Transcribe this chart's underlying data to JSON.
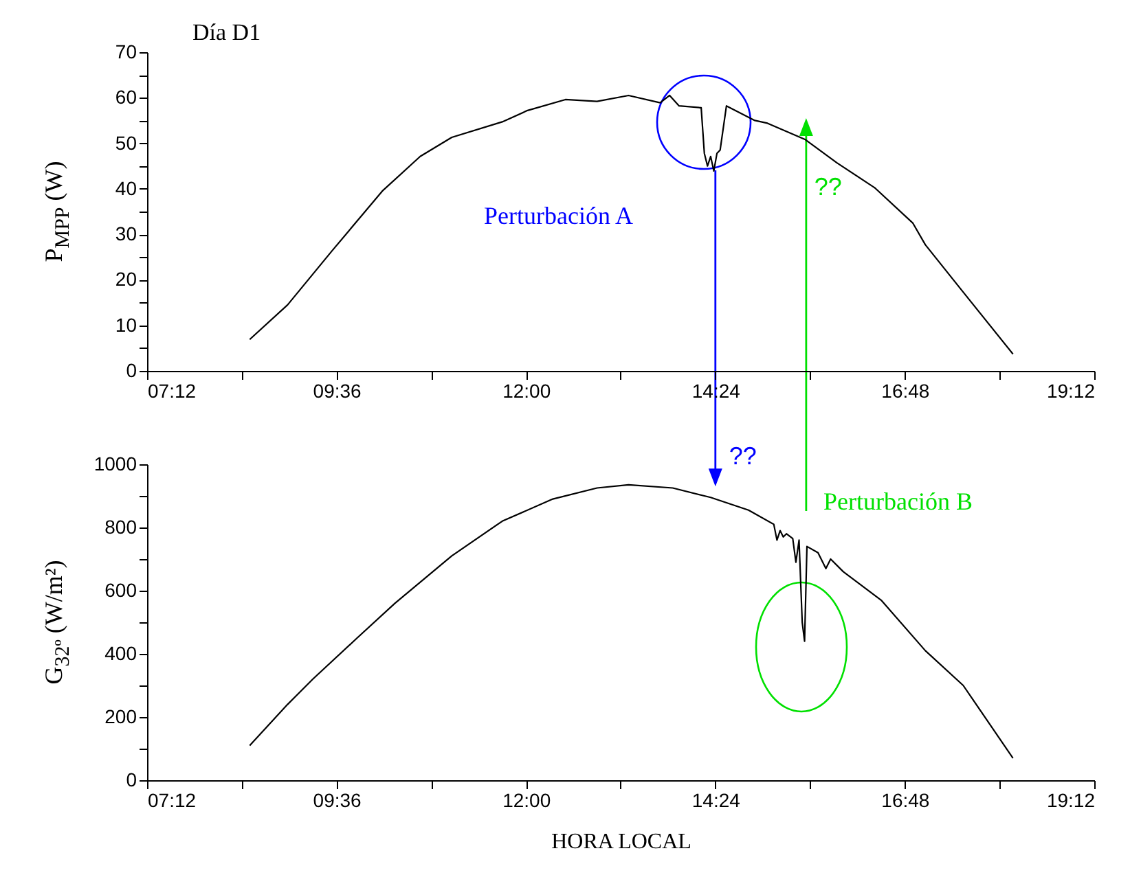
{
  "chart_data": [
    {
      "type": "line",
      "title": "Día D1",
      "ylabel": "P$_{MPP}$ (W)",
      "x": [
        8.5,
        8.98,
        9.54,
        10.18,
        10.66,
        11.06,
        11.7,
        12.02,
        12.5,
        12.9,
        13.3,
        13.7,
        13.82,
        13.94,
        14.22,
        14.26,
        14.3,
        14.34,
        14.38,
        14.42,
        14.46,
        14.54,
        14.9,
        15.06,
        15.54,
        15.94,
        16.42,
        16.9,
        17.06,
        17.54,
        18.17
      ],
      "series": [
        {
          "color": "#000000",
          "values": [
            6.9,
            14.5,
            26.3,
            39.5,
            47.1,
            51.3,
            54.7,
            57.2,
            59.6,
            59.2,
            60.5,
            58.9,
            60.5,
            58.2,
            57.8,
            47.8,
            45.0,
            47.1,
            43.9,
            47.8,
            48.5,
            58.2,
            55.0,
            54.4,
            50.8,
            45.7,
            40.2,
            32.5,
            27.7,
            17.3,
            3.7
          ]
        }
      ],
      "xlim": [
        7.2,
        19.2
      ],
      "xticks": [
        {
          "value": 7.2,
          "label": "07:12"
        },
        {
          "value": 8.4,
          "label": null
        },
        {
          "value": 9.6,
          "label": "09:36"
        },
        {
          "value": 10.8,
          "label": null
        },
        {
          "value": 12,
          "label": "12:00"
        },
        {
          "value": 13.2,
          "label": null
        },
        {
          "value": 14.4,
          "label": "14:24"
        },
        {
          "value": 15.6,
          "label": null
        },
        {
          "value": 16.8,
          "label": "16:48"
        },
        {
          "value": 18,
          "label": null
        },
        {
          "value": 19.2,
          "label": "19:12"
        }
      ],
      "ylim": [
        0,
        70
      ],
      "yticks": [
        0,
        {
          "value": 5,
          "label": null
        },
        10,
        {
          "value": 15,
          "label": null
        },
        20,
        {
          "value": 25,
          "label": null
        },
        30,
        {
          "value": 35,
          "label": null
        },
        40,
        {
          "value": 45,
          "label": null
        },
        50,
        {
          "value": 55,
          "label": null
        },
        60,
        {
          "value": 65,
          "label": null
        },
        70
      ],
      "grid": false,
      "annotations": [
        "Perturbación A",
        {
          "text": "??",
          "x": 15.55,
          "y": 51
        }
      ]
    },
    {
      "type": "line",
      "xlabel": "HORA LOCAL",
      "ylabel": "G$_{32º}$ (W/m²)",
      "x": [
        8.5,
        8.98,
        9.3,
        9.86,
        10.34,
        11.06,
        11.7,
        12.34,
        12.9,
        13.3,
        13.86,
        14.34,
        14.82,
        15.14,
        15.18,
        15.22,
        15.26,
        15.3,
        15.38,
        15.42,
        15.46,
        15.5,
        15.53,
        15.56,
        15.7,
        15.8,
        15.86,
        16.02,
        16.5,
        17.06,
        17.54,
        18.17
      ],
      "series": [
        {
          "color": "#000000",
          "values": [
            110,
            240,
            320,
            450,
            560,
            710,
            820,
            890,
            925,
            935,
            925,
            895,
            855,
            810,
            760,
            790,
            770,
            780,
            765,
            690,
            760,
            500,
            440,
            740,
            720,
            670,
            700,
            660,
            570,
            410,
            300,
            70
          ]
        }
      ],
      "xlim": [
        7.2,
        19.2
      ],
      "xticks": [
        {
          "value": 7.2,
          "label": "07:12"
        },
        {
          "value": 8.4,
          "label": null
        },
        {
          "value": 9.6,
          "label": "09:36"
        },
        {
          "value": 10.8,
          "label": null
        },
        {
          "value": 12,
          "label": "12:00"
        },
        {
          "value": 13.2,
          "label": null
        },
        {
          "value": 14.4,
          "label": "14:24"
        },
        {
          "value": 15.6,
          "label": null
        },
        {
          "value": 16.8,
          "label": "16:48"
        },
        {
          "value": 18,
          "label": null
        },
        {
          "value": 19.2,
          "label": "19:12"
        }
      ],
      "ylim": [
        0,
        1000
      ],
      "yticks": [
        0,
        {
          "value": 100,
          "label": null
        },
        200,
        {
          "value": 300,
          "label": null
        },
        400,
        {
          "value": 500,
          "label": null
        },
        600,
        {
          "value": 700,
          "label": null
        },
        800,
        {
          "value": 900,
          "label": null
        },
        1000
      ],
      "grid": false,
      "annotations": [
        {
          "text": "??",
          "x": 14.4,
          "y": 895
        },
        "Perturbación B"
      ]
    }
  ]
}
